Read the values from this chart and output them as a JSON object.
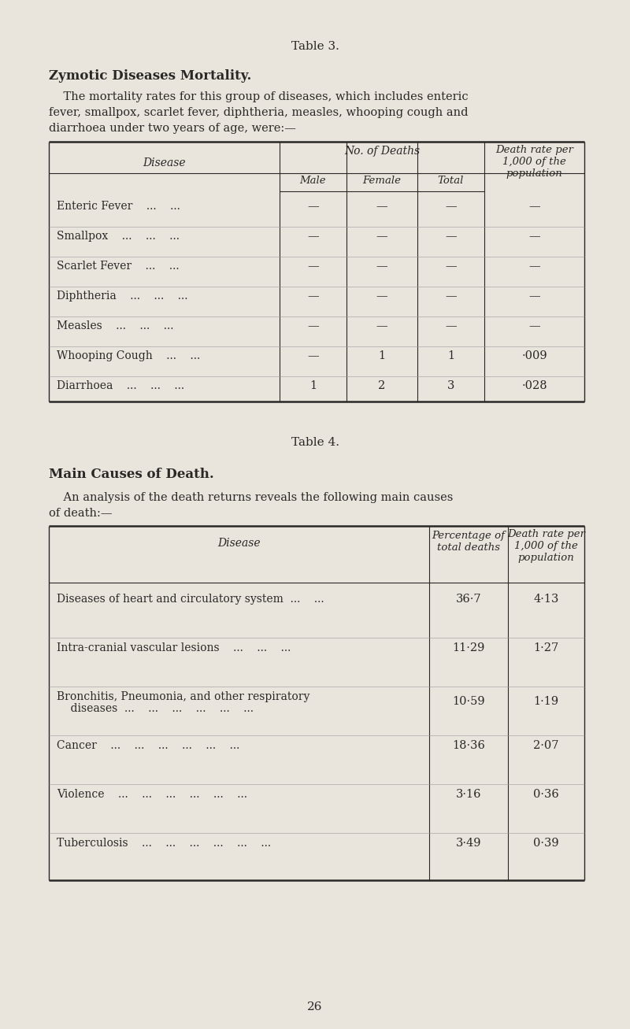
{
  "bg_color": "#e9e5dd",
  "text_color": "#2a2826",
  "table3_title": "Table 3.",
  "table3_subtitle": "Zymotic Diseases Mortality.",
  "table3_body_line1": "    The mortality rates for this group of diseases, which includes enteric",
  "table3_body_line2": "fever, smallpox, scarlet fever, diphtheria, measles, whooping cough and",
  "table3_body_line3": "diarrhoea under two years of age, were:—",
  "t3_header1_disease": "Disease",
  "t3_header1_nodeaths": "No. of Deaths",
  "t3_header1_deathrate": "Death rate per\n1,000 of the\npopulation",
  "t3_header2_male": "Male",
  "t3_header2_female": "Female",
  "t3_header2_total": "Total",
  "table3_rows": [
    [
      "Enteric Fever",
      "...",
      "...",
      "—",
      "—",
      "—",
      "—"
    ],
    [
      "Smallpox",
      "...",
      "...",
      "...",
      "—",
      "—",
      "—",
      "—"
    ],
    [
      "Scarlet Fever",
      "...",
      "...",
      "—",
      "—",
      "—",
      "—"
    ],
    [
      "Diphtheria ...",
      "...",
      "...",
      "—",
      "—",
      "—",
      "—"
    ],
    [
      "Measles",
      "...",
      "...",
      "...",
      "—",
      "—",
      "—",
      "—"
    ],
    [
      "Whooping Cough",
      "...",
      "...",
      "—",
      "1",
      "1",
      "·009"
    ],
    [
      "Diarrhoea",
      "...",
      "...",
      "...",
      "1",
      "2",
      "3",
      "·028"
    ]
  ],
  "t3_rows_display": [
    {
      "name": "Enteric Fever    ...    ...",
      "male": "—",
      "female": "—",
      "total": "—",
      "rate": "—"
    },
    {
      "name": "Smallpox    ...    ...    ...",
      "male": "—",
      "female": "—",
      "total": "—",
      "rate": "—"
    },
    {
      "name": "Scarlet Fever    ...    ...",
      "male": "—",
      "female": "—",
      "total": "—",
      "rate": "—"
    },
    {
      "name": "Diphtheria    ...    ...    ...",
      "male": "—",
      "female": "—",
      "total": "—",
      "rate": "—"
    },
    {
      "name": "Measles    ...    ...    ...",
      "male": "—",
      "female": "—",
      "total": "—",
      "rate": "—"
    },
    {
      "name": "Whooping Cough    ...    ...",
      "male": "—",
      "female": "1",
      "total": "1",
      "rate": "·009"
    },
    {
      "name": "Diarrhoea    ...    ...    ...",
      "male": "1",
      "female": "2",
      "total": "3",
      "rate": "·028"
    }
  ],
  "table4_title": "Table 4.",
  "table4_subtitle": "Main Causes of Death.",
  "table4_body_line1": "    An analysis of the death returns reveals the following main causes",
  "table4_body_line2": "of death:—",
  "t4_header_disease": "Disease",
  "t4_header_pct": "Percentage of\ntotal deaths",
  "t4_header_rate": "Death rate per\n1,000 of the\npopulation",
  "t4_rows_display": [
    {
      "name": "Diseases of heart and circulatory system  ...    ...",
      "name2": "",
      "pct": "36·7",
      "rate": "4·13"
    },
    {
      "name": "Intra-cranial vascular lesions    ...    ...    ...",
      "name2": "",
      "pct": "11·29",
      "rate": "1·27"
    },
    {
      "name": "Bronchitis, Pneumonia, and other respiratory",
      "name2": "    diseases  ...    ...    ...    ...    ...    ...",
      "pct": "10·59",
      "rate": "1·19"
    },
    {
      "name": "Cancer    ...    ...    ...    ...    ...    ...",
      "name2": "",
      "pct": "18·36",
      "rate": "2·07"
    },
    {
      "name": "Violence    ...    ...    ...    ...    ...    ...",
      "name2": "",
      "pct": "3·16",
      "rate": "0·36"
    },
    {
      "name": "Tuberculosis    ...    ...    ...    ...    ...    ...",
      "name2": "",
      "pct": "3·49",
      "rate": "0·39"
    }
  ],
  "page_number": "26"
}
